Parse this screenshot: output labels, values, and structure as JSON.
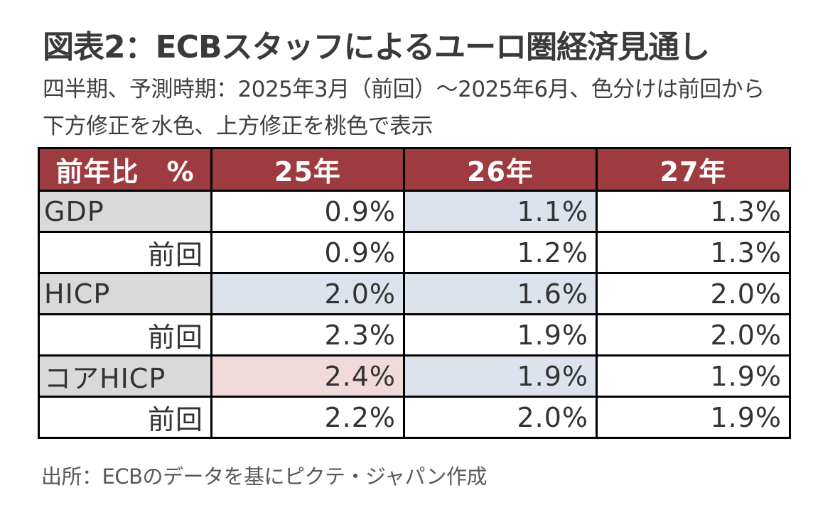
{
  "title": "図表2：ECBスタッフによるユーロ圏経済見通し",
  "subtitle_line1": "四半期、予測時期：2025年3月（前回）～2025年6月、色分けは前回から",
  "subtitle_line2": "下方修正を水色、上方修正を桃色で表示",
  "source": "出所：ECBのデータを基にピクテ・ジャパン作成",
  "colors": {
    "header": "#9e3b40",
    "downward_revision": "#dce3ec",
    "upward_revision": "#f2d9da",
    "label_cell": "#d9d9d9"
  },
  "chart_data": {
    "type": "table",
    "unit_header": "前年比　%",
    "columns": [
      "25年",
      "26年",
      "27年"
    ],
    "rows": [
      {
        "label": "GDP",
        "values": [
          "0.9%",
          "1.1%",
          "1.3%"
        ],
        "revision": [
          "none",
          "down",
          "none"
        ]
      },
      {
        "label": "前回",
        "values": [
          "0.9%",
          "1.2%",
          "1.3%"
        ]
      },
      {
        "label": "HICP",
        "values": [
          "2.0%",
          "1.6%",
          "2.0%"
        ],
        "revision": [
          "down",
          "down",
          "none"
        ]
      },
      {
        "label": "前回",
        "values": [
          "2.3%",
          "1.9%",
          "2.0%"
        ]
      },
      {
        "label": "コアHICP",
        "values": [
          "2.4%",
          "1.9%",
          "1.9%"
        ],
        "revision": [
          "up",
          "down",
          "none"
        ]
      },
      {
        "label": "前回",
        "values": [
          "2.2%",
          "2.0%",
          "1.9%"
        ]
      }
    ]
  }
}
